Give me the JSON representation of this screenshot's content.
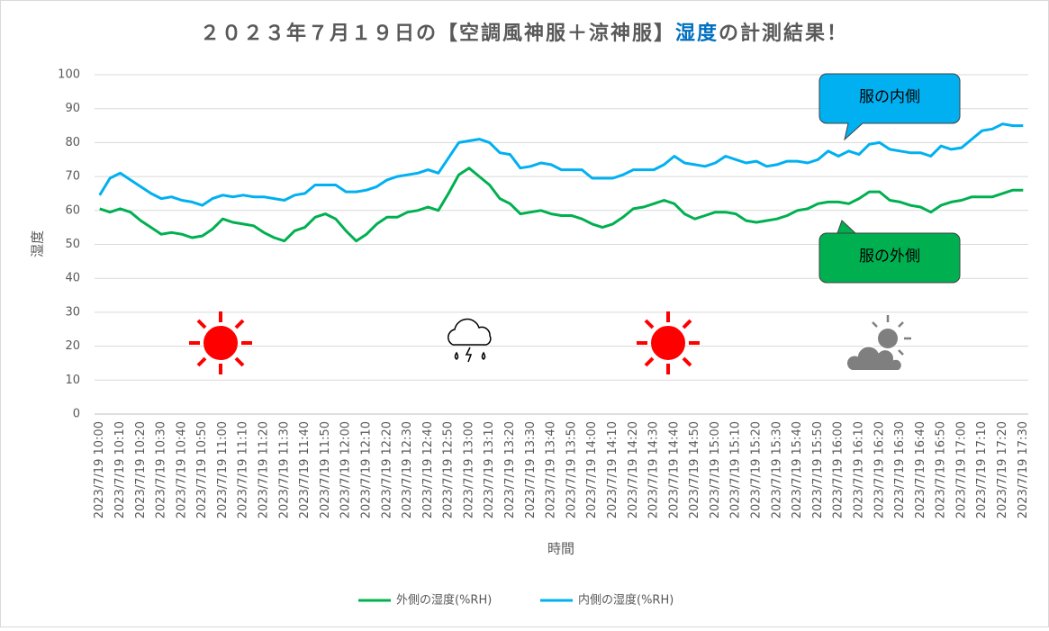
{
  "chart_data": {
    "type": "line",
    "title": [
      "２０２３年７月１９日の【空調風神服＋涼神服】",
      "湿度",
      "の計測結果！"
    ],
    "title_colors": [
      "#595959",
      "#0070c0",
      "#595959"
    ],
    "x_label": "時間",
    "y_label": "湿度",
    "categories": [
      "2023/7/19 10:00",
      null,
      "2023/7/19 10:10",
      null,
      "2023/7/19 10:20",
      null,
      "2023/7/19 10:30",
      null,
      "2023/7/19 10:40",
      null,
      "2023/7/19 10:50",
      null,
      "2023/7/19 11:00",
      null,
      "2023/7/19 11:10",
      null,
      "2023/7/19 11:20",
      null,
      "2023/7/19 11:30",
      null,
      "2023/7/19 11:40",
      null,
      "2023/7/19 11:50",
      null,
      "2023/7/19 12:00",
      null,
      "2023/7/19 12:10",
      null,
      "2023/7/19 12:20",
      null,
      "2023/7/19 12:30",
      null,
      "2023/7/19 12:40",
      null,
      "2023/7/19 12:50",
      null,
      "2023/7/19 13:00",
      null,
      "2023/7/19 13:10",
      null,
      "2023/7/19 13:20",
      null,
      "2023/7/19 13:30",
      null,
      "2023/7/19 13:40",
      null,
      "2023/7/19 13:50",
      null,
      "2023/7/19 14:00",
      null,
      "2023/7/19 14:10",
      null,
      "2023/7/19 14:20",
      null,
      "2023/7/19 14:30",
      null,
      "2023/7/19 14:40",
      null,
      "2023/7/19 14:50",
      null,
      "2023/7/19 15:00",
      null,
      "2023/7/19 15:10",
      null,
      "2023/7/19 15:20",
      null,
      "2023/7/19 15:30",
      null,
      "2023/7/19 15:40",
      null,
      "2023/7/19 15:50",
      null,
      "2023/7/19 16:00",
      null,
      "2023/7/19 16:10",
      null,
      "2023/7/19 16:20",
      null,
      "2023/7/19 16:30",
      null,
      "2023/7/19 16:40",
      null,
      "2023/7/19 16:50",
      null,
      "2023/7/19 17:00",
      null,
      "2023/7/19 17:10",
      null,
      "2023/7/19 17:20",
      null,
      "2023/7/19 17:30"
    ],
    "series": [
      {
        "name": "外側の湿度(%RH)",
        "color": "#00b050",
        "values": [
          60.5,
          59.5,
          60.5,
          59.5,
          57,
          55,
          53,
          53.5,
          53,
          52,
          52.5,
          54.5,
          57.5,
          56.5,
          56,
          55.5,
          53.5,
          52,
          51,
          54,
          55,
          58,
          59,
          57.5,
          54,
          51,
          53,
          56,
          58,
          58,
          59.5,
          60,
          61,
          60,
          65,
          70.5,
          72.5,
          70,
          67.5,
          63.5,
          62,
          59,
          59.5,
          60,
          59,
          58.5,
          58.5,
          57.5,
          56,
          55,
          56,
          58,
          60.5,
          61,
          62,
          63,
          62,
          59,
          57.5,
          58.5,
          59.5,
          59.5,
          59,
          57,
          56.5,
          57,
          57.5,
          58.5,
          60,
          60.5,
          62,
          62.5,
          62.5,
          62,
          63.5,
          65.5,
          65.5,
          63,
          62.5,
          61.5,
          61,
          59.5,
          61.5,
          62.5,
          63,
          64,
          64,
          64,
          65,
          66,
          66
        ]
      },
      {
        "name": "内側の湿度(%RH)",
        "color": "#00b0f0",
        "values": [
          64.5,
          69.5,
          71,
          69,
          67,
          65,
          63.5,
          64,
          63,
          62.5,
          61.5,
          63.5,
          64.5,
          64,
          64.5,
          64,
          64,
          63.5,
          63,
          64.5,
          65,
          67.5,
          67.5,
          67.5,
          65.5,
          65.5,
          66,
          67,
          69,
          70,
          70.5,
          71,
          72,
          71,
          75.5,
          80,
          80.5,
          81,
          80,
          77,
          76.5,
          72.5,
          73,
          74,
          73.5,
          72,
          72,
          72,
          69.5,
          69.5,
          69.5,
          70.5,
          72,
          72,
          72,
          73.5,
          76,
          74,
          73.5,
          73,
          74,
          76,
          75,
          74,
          74.5,
          73,
          73.5,
          74.5,
          74.5,
          74,
          75,
          77.5,
          76,
          77.5,
          76.5,
          79.5,
          80,
          78,
          77.5,
          77,
          77,
          76,
          79,
          78,
          78.5,
          81,
          83.5,
          84,
          85.5,
          85,
          85
        ]
      }
    ],
    "ylim": [
      0,
      100
    ],
    "yticks": [
      0,
      10,
      20,
      30,
      40,
      50,
      60,
      70,
      80,
      90,
      100
    ],
    "grid": true,
    "annotations": [
      {
        "text": "服の内側",
        "color": "#00b0f0"
      },
      {
        "text": "服の外側",
        "color": "#00b050"
      }
    ],
    "legend": "bottom"
  }
}
